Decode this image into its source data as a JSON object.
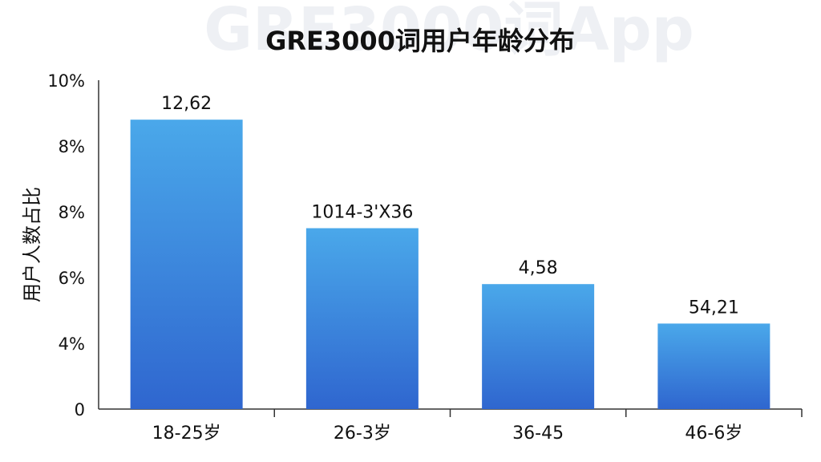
{
  "watermark": "GRE3000词App",
  "chart_data": {
    "type": "bar",
    "title": "GRE3000词用户年龄分布",
    "xlabel": "",
    "ylabel": "用户人数占比",
    "y_ticks": [
      "0",
      "4%",
      "6%",
      "8%",
      "8%",
      "10%"
    ],
    "categories": [
      "18-25岁",
      "26-3岁",
      "36-45",
      "46-6岁"
    ],
    "values": [
      8.8,
      5.5,
      3.8,
      2.6
    ],
    "ylim": [
      0,
      10
    ],
    "data_labels": [
      "12,62",
      "1014-3'X36",
      "4,58",
      "54,21"
    ],
    "grid": false,
    "bar_color_top": "#4aa8ea",
    "bar_color_bottom": "#2f66cf"
  }
}
